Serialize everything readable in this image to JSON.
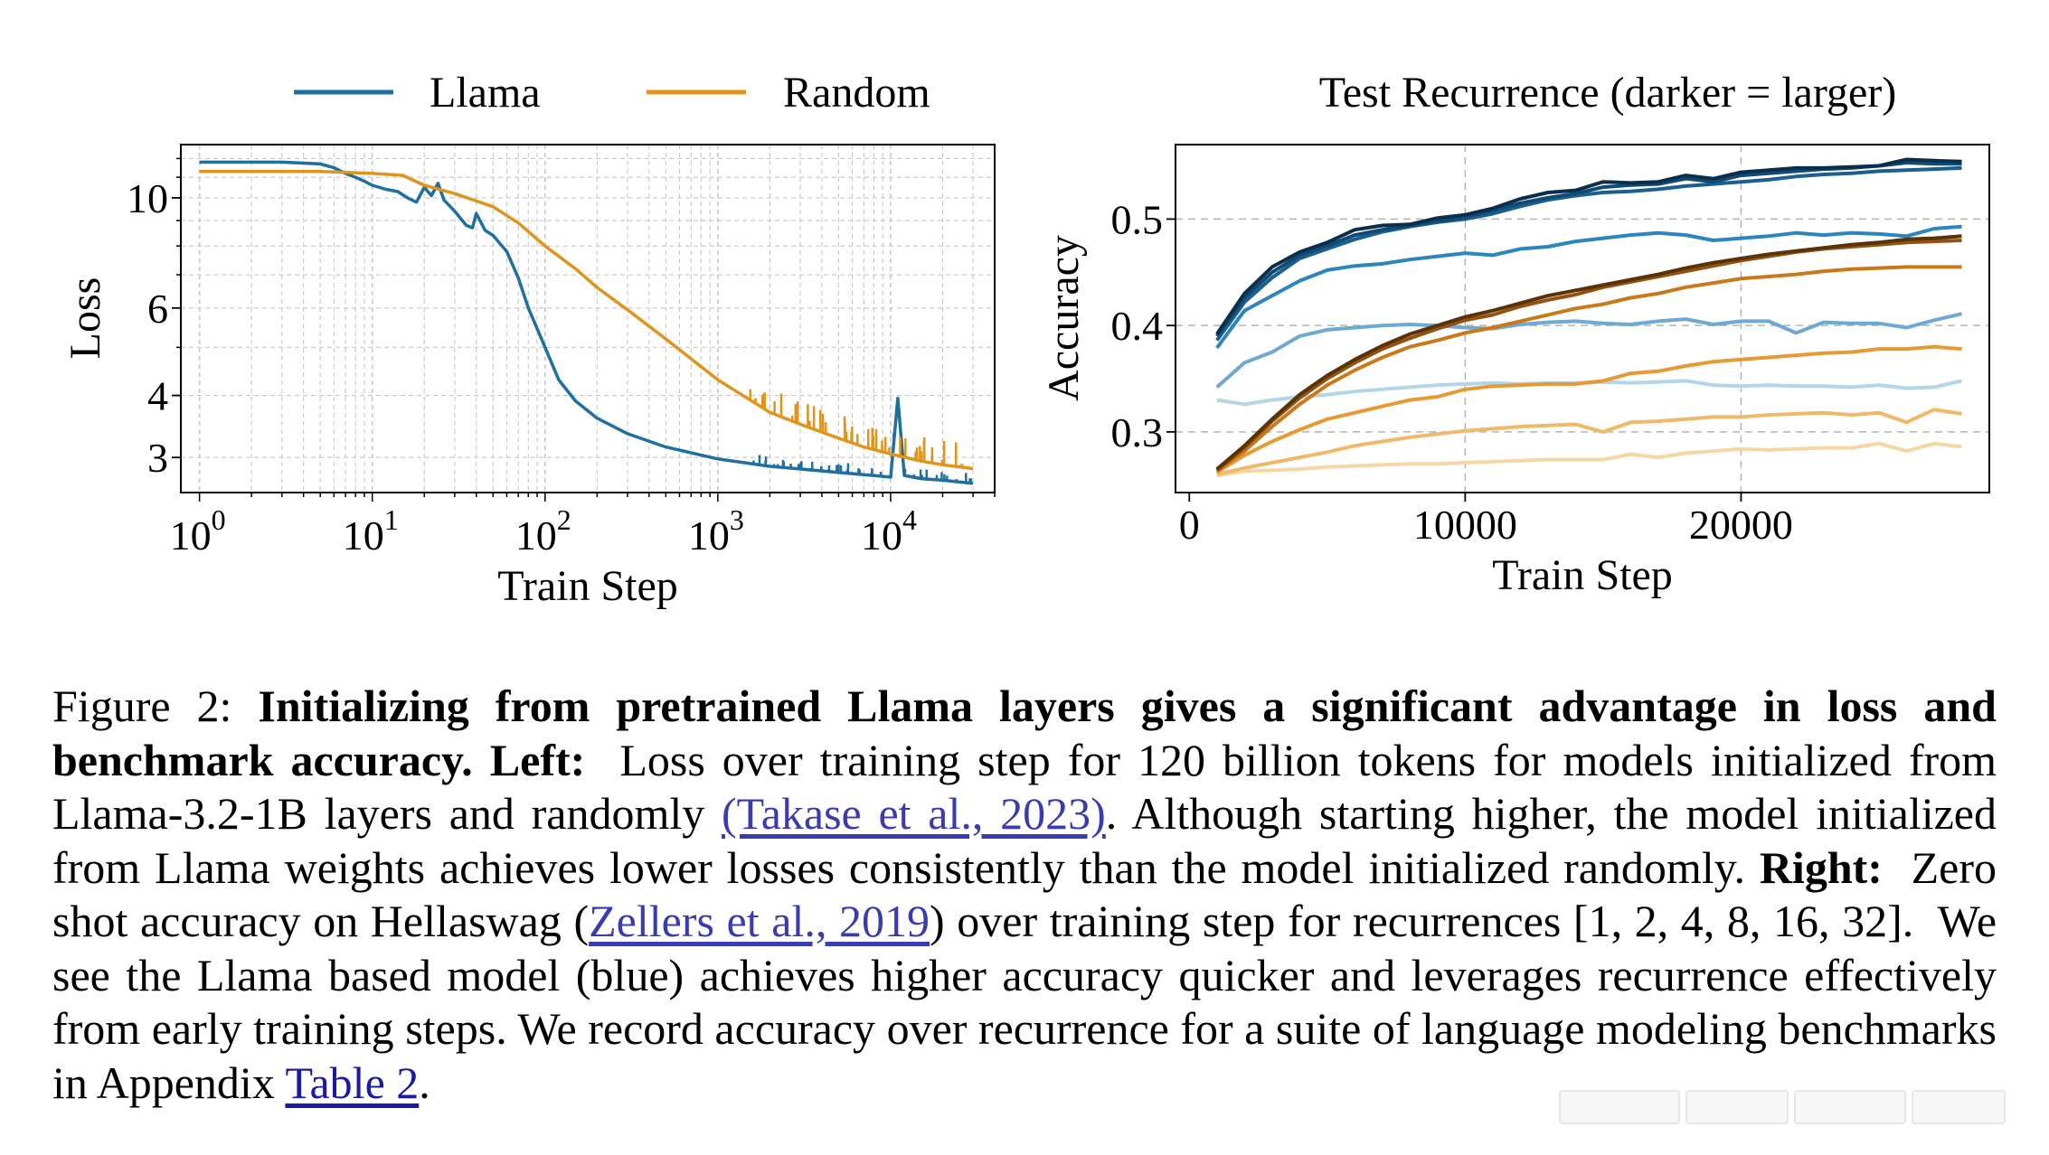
{
  "chart_data": [
    {
      "type": "line",
      "panel": "left",
      "title": "",
      "xlabel": "Train Step",
      "ylabel": "Loss",
      "xscale": "log",
      "yscale": "log",
      "xlim": [
        0.78,
        40000
      ],
      "ylim": [
        2.55,
        12.8
      ],
      "xticks": [
        1,
        10,
        100,
        1000,
        10000
      ],
      "xtick_labels": [
        {
          "base": "10",
          "exp": "0"
        },
        {
          "base": "10",
          "exp": "1"
        },
        {
          "base": "10",
          "exp": "2"
        },
        {
          "base": "10",
          "exp": "3"
        },
        {
          "base": "10",
          "exp": "4"
        }
      ],
      "yticks": [
        3,
        4,
        6,
        10
      ],
      "ytick_labels": [
        "3",
        "4",
        "6",
        "10"
      ],
      "grid": true,
      "legend": [
        {
          "label": "Llama",
          "color": "#1f6fa0"
        },
        {
          "label": "Random",
          "color": "#e0941c"
        }
      ],
      "series": [
        {
          "name": "Llama",
          "color": "#1f6fa0",
          "x": [
            1,
            2,
            3,
            5,
            6,
            7,
            8,
            9,
            10,
            12,
            14,
            16,
            18,
            20,
            22,
            24,
            26,
            30,
            35,
            38,
            40,
            45,
            50,
            60,
            70,
            80,
            100,
            120,
            150,
            200,
            300,
            500,
            1000,
            2000,
            5000,
            10000,
            11000,
            12000,
            15000,
            20000,
            30000
          ],
          "y": [
            11.8,
            11.8,
            11.8,
            11.7,
            11.5,
            11.2,
            11.0,
            10.8,
            10.6,
            10.4,
            10.3,
            10.0,
            9.8,
            10.5,
            10.1,
            10.7,
            9.9,
            9.4,
            8.8,
            8.7,
            9.3,
            8.6,
            8.4,
            7.8,
            6.9,
            6.0,
            5.0,
            4.3,
            3.9,
            3.6,
            3.35,
            3.15,
            2.98,
            2.88,
            2.8,
            2.74,
            3.95,
            2.76,
            2.72,
            2.7,
            2.66
          ]
        },
        {
          "name": "Random",
          "color": "#e0941c",
          "x": [
            1,
            2,
            5,
            10,
            15,
            20,
            30,
            50,
            70,
            100,
            150,
            200,
            300,
            500,
            1000,
            2000,
            3000,
            5000,
            7000,
            10000,
            15000,
            20000,
            30000
          ],
          "y": [
            11.3,
            11.3,
            11.3,
            11.2,
            11.1,
            10.6,
            10.2,
            9.6,
            8.9,
            8.0,
            7.2,
            6.6,
            5.95,
            5.2,
            4.3,
            3.7,
            3.5,
            3.28,
            3.15,
            3.05,
            2.95,
            2.9,
            2.85
          ]
        }
      ]
    },
    {
      "type": "line",
      "panel": "right",
      "title": "Test Recurrence (darker = larger)",
      "xlabel": "Train Step",
      "ylabel": "Accuracy",
      "xlim": [
        -500,
        29000
      ],
      "ylim": [
        0.243,
        0.57
      ],
      "xticks": [
        0,
        10000,
        20000
      ],
      "xtick_labels": [
        "0",
        "10000",
        "20000"
      ],
      "yticks": [
        0.3,
        0.4,
        0.5
      ],
      "ytick_labels": [
        "0.3",
        "0.4",
        "0.5"
      ],
      "grid": true,
      "x": [
        1000,
        2000,
        3000,
        4000,
        5000,
        6000,
        7000,
        8000,
        9000,
        10000,
        11000,
        12000,
        13000,
        14000,
        15000,
        16000,
        17000,
        18000,
        19000,
        20000,
        21000,
        22000,
        23000,
        24000,
        25000,
        26000,
        27000,
        28000
      ],
      "series": [
        {
          "name": "Llama r1",
          "color": "#b4d4e8",
          "values": [
            0.33,
            0.326,
            0.33,
            0.333,
            0.335,
            0.338,
            0.34,
            0.342,
            0.344,
            0.345,
            0.346,
            0.345,
            0.346,
            0.346,
            0.347,
            0.346,
            0.347,
            0.348,
            0.344,
            0.343,
            0.344,
            0.343,
            0.343,
            0.342,
            0.344,
            0.341,
            0.342,
            0.348
          ]
        },
        {
          "name": "Llama r2",
          "color": "#6fa8d1",
          "values": [
            0.342,
            0.365,
            0.375,
            0.39,
            0.396,
            0.398,
            0.4,
            0.401,
            0.4,
            0.398,
            0.397,
            0.401,
            0.403,
            0.404,
            0.402,
            0.401,
            0.404,
            0.406,
            0.401,
            0.404,
            0.404,
            0.393,
            0.403,
            0.402,
            0.402,
            0.398,
            0.405,
            0.411
          ]
        },
        {
          "name": "Llama r4",
          "color": "#2b85bf",
          "values": [
            0.379,
            0.414,
            0.428,
            0.442,
            0.452,
            0.456,
            0.458,
            0.462,
            0.465,
            0.468,
            0.466,
            0.472,
            0.474,
            0.479,
            0.482,
            0.485,
            0.487,
            0.485,
            0.48,
            0.482,
            0.484,
            0.487,
            0.485,
            0.487,
            0.486,
            0.484,
            0.491,
            0.493
          ]
        },
        {
          "name": "Llama r8",
          "color": "#1a5f8f",
          "values": [
            0.386,
            0.422,
            0.445,
            0.463,
            0.472,
            0.481,
            0.488,
            0.493,
            0.497,
            0.5,
            0.505,
            0.512,
            0.518,
            0.522,
            0.525,
            0.526,
            0.528,
            0.531,
            0.533,
            0.535,
            0.537,
            0.54,
            0.542,
            0.543,
            0.545,
            0.546,
            0.547,
            0.548
          ]
        },
        {
          "name": "Llama r16",
          "color": "#114a72",
          "values": [
            0.39,
            0.426,
            0.45,
            0.466,
            0.475,
            0.485,
            0.49,
            0.494,
            0.498,
            0.502,
            0.508,
            0.515,
            0.52,
            0.524,
            0.53,
            0.532,
            0.533,
            0.538,
            0.535,
            0.541,
            0.543,
            0.545,
            0.547,
            0.548,
            0.55,
            0.553,
            0.552,
            0.552
          ]
        },
        {
          "name": "Llama r32",
          "color": "#0a2f4d",
          "values": [
            0.392,
            0.43,
            0.455,
            0.469,
            0.478,
            0.49,
            0.494,
            0.495,
            0.501,
            0.504,
            0.51,
            0.519,
            0.525,
            0.527,
            0.535,
            0.534,
            0.535,
            0.541,
            0.538,
            0.544,
            0.546,
            0.548,
            0.548,
            0.549,
            0.55,
            0.556,
            0.555,
            0.554
          ]
        },
        {
          "name": "Random r1",
          "color": "#f5d7a3",
          "values": [
            0.259,
            0.263,
            0.264,
            0.265,
            0.267,
            0.268,
            0.269,
            0.27,
            0.27,
            0.271,
            0.272,
            0.273,
            0.274,
            0.274,
            0.274,
            0.279,
            0.276,
            0.28,
            0.282,
            0.284,
            0.283,
            0.284,
            0.285,
            0.285,
            0.289,
            0.282,
            0.289,
            0.286
          ]
        },
        {
          "name": "Random r2",
          "color": "#f0b968",
          "values": [
            0.26,
            0.266,
            0.271,
            0.276,
            0.281,
            0.287,
            0.291,
            0.295,
            0.298,
            0.301,
            0.303,
            0.305,
            0.306,
            0.307,
            0.3,
            0.309,
            0.31,
            0.312,
            0.314,
            0.314,
            0.316,
            0.317,
            0.318,
            0.316,
            0.318,
            0.309,
            0.321,
            0.317
          ]
        },
        {
          "name": "Random r4",
          "color": "#e69a33",
          "values": [
            0.262,
            0.278,
            0.291,
            0.302,
            0.312,
            0.318,
            0.324,
            0.33,
            0.333,
            0.34,
            0.343,
            0.344,
            0.345,
            0.345,
            0.348,
            0.355,
            0.357,
            0.362,
            0.366,
            0.368,
            0.37,
            0.372,
            0.374,
            0.375,
            0.378,
            0.378,
            0.38,
            0.378
          ]
        },
        {
          "name": "Random r8",
          "color": "#c9781a",
          "values": [
            0.263,
            0.282,
            0.305,
            0.326,
            0.344,
            0.358,
            0.37,
            0.38,
            0.386,
            0.393,
            0.398,
            0.404,
            0.41,
            0.416,
            0.42,
            0.426,
            0.43,
            0.436,
            0.44,
            0.444,
            0.446,
            0.448,
            0.451,
            0.453,
            0.454,
            0.455,
            0.455,
            0.455
          ]
        },
        {
          "name": "Random r16",
          "color": "#935210",
          "values": [
            0.264,
            0.285,
            0.31,
            0.332,
            0.35,
            0.365,
            0.378,
            0.388,
            0.397,
            0.405,
            0.41,
            0.418,
            0.424,
            0.429,
            0.436,
            0.441,
            0.446,
            0.451,
            0.456,
            0.461,
            0.465,
            0.469,
            0.472,
            0.474,
            0.476,
            0.478,
            0.479,
            0.48
          ]
        },
        {
          "name": "Random r32",
          "color": "#5a3208",
          "values": [
            0.265,
            0.287,
            0.312,
            0.335,
            0.353,
            0.368,
            0.381,
            0.392,
            0.4,
            0.408,
            0.414,
            0.421,
            0.428,
            0.433,
            0.438,
            0.443,
            0.448,
            0.454,
            0.459,
            0.463,
            0.467,
            0.47,
            0.473,
            0.476,
            0.478,
            0.481,
            0.482,
            0.484
          ]
        }
      ]
    }
  ],
  "caption": {
    "label": "Figure 2: ",
    "bold_intro": "Initializing from pretrained Llama layers gives a significant advantage in loss and benchmark accuracy.",
    "left_label": "Left:",
    "left_text_1": "Loss over training step for 120 billion tokens for models initialized from Llama-3.2-1B layers and randomly",
    "cite_1": "(Takase et al., 2023)",
    "left_text_2": ". Although starting higher, the model initialized from Llama weights achieves lower losses consistently than the model initialized randomly.",
    "right_label": "Right:",
    "right_text_1": "Zero shot accuracy on Hellaswag",
    "cite_2_open": "(",
    "cite_2": "Zellers et al., 2019",
    "cite_2_close": ")",
    "right_text_2": "over training step for recurrences",
    "recurrences": "[1, 2, 4, 8, 16, 32].",
    "right_text_3": "We see the Llama based model (blue) achieves higher accuracy quicker and leverages recurrence effectively from early training steps. We record accuracy over recurrence for a suite of language modeling benchmarks in Appendix",
    "table_ref": "Table 2",
    "end": "."
  }
}
